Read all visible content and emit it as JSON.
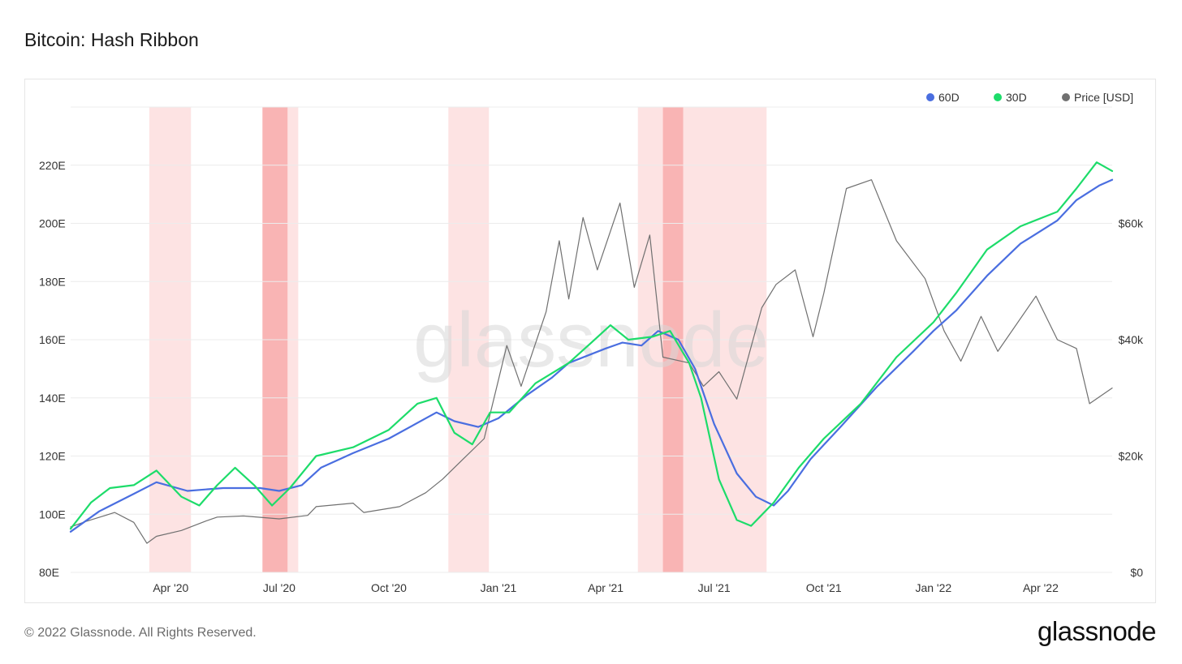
{
  "title": "Bitcoin: Hash Ribbon",
  "footer": "© 2022 Glassnode. All Rights Reserved.",
  "brand": "glassnode",
  "watermark": "glassnode",
  "colors": {
    "hash60": "#4a6ee0",
    "hash30": "#1ddc6a",
    "price": "#707070",
    "band_light": "#fde3e3",
    "band_dark": "#f9b4b4",
    "grid": "#ececec"
  },
  "chart_data": {
    "type": "line",
    "title": "Bitcoin: Hash Ribbon",
    "legend_position": "top-right",
    "grid": true,
    "x_tick_labels": [
      "Apr '20",
      "Jul '20",
      "Oct '20",
      "Jan '21",
      "Apr '21",
      "Jul '21",
      "Oct '21",
      "Jan '22",
      "Apr '22"
    ],
    "x_ticks": [
      "2020-04-01",
      "2020-07-01",
      "2020-10-01",
      "2021-01-01",
      "2021-04-01",
      "2021-07-01",
      "2021-10-01",
      "2022-01-01",
      "2022-04-01"
    ],
    "xlim": [
      "2020-01-08",
      "2022-05-31"
    ],
    "y_left": {
      "tick_labels": [
        "80E",
        "100E",
        "120E",
        "140E",
        "160E",
        "180E",
        "200E",
        "220E"
      ],
      "ticks": [
        80,
        100,
        120,
        140,
        160,
        180,
        200,
        220
      ],
      "ylim": [
        80,
        240
      ]
    },
    "y_right": {
      "tick_labels": [
        "$0",
        "$20k",
        "$40k",
        "$60k"
      ],
      "ticks": [
        0,
        20000,
        40000,
        60000
      ],
      "ylim": [
        0,
        80000
      ]
    },
    "capitulation_bands": [
      {
        "start": "2020-03-14",
        "end": "2020-04-18",
        "level": "light"
      },
      {
        "start": "2020-06-17",
        "end": "2020-07-17",
        "level": "light"
      },
      {
        "start": "2020-06-17",
        "end": "2020-07-08",
        "level": "dark"
      },
      {
        "start": "2020-11-20",
        "end": "2020-12-24",
        "level": "light"
      },
      {
        "start": "2021-04-28",
        "end": "2021-08-14",
        "level": "light"
      },
      {
        "start": "2021-05-19",
        "end": "2021-06-05",
        "level": "dark"
      }
    ],
    "series": [
      {
        "name": "60D",
        "axis": "left",
        "points": [
          [
            "2020-01-08",
            94
          ],
          [
            "2020-02-01",
            101
          ],
          [
            "2020-03-01",
            107
          ],
          [
            "2020-03-20",
            111
          ],
          [
            "2020-04-15",
            108
          ],
          [
            "2020-05-15",
            109
          ],
          [
            "2020-06-15",
            109
          ],
          [
            "2020-07-01",
            108
          ],
          [
            "2020-07-20",
            110
          ],
          [
            "2020-08-05",
            116
          ],
          [
            "2020-09-01",
            121
          ],
          [
            "2020-10-01",
            126
          ],
          [
            "2020-11-10",
            135
          ],
          [
            "2020-11-25",
            132
          ],
          [
            "2020-12-15",
            130
          ],
          [
            "2021-01-01",
            133
          ],
          [
            "2021-01-25",
            141
          ],
          [
            "2021-02-15",
            147
          ],
          [
            "2021-03-01",
            152
          ],
          [
            "2021-04-01",
            157
          ],
          [
            "2021-04-15",
            159
          ],
          [
            "2021-05-01",
            158
          ],
          [
            "2021-05-15",
            163
          ],
          [
            "2021-06-01",
            160
          ],
          [
            "2021-06-15",
            150
          ],
          [
            "2021-07-01",
            131
          ],
          [
            "2021-07-20",
            114
          ],
          [
            "2021-08-05",
            106
          ],
          [
            "2021-08-20",
            103
          ],
          [
            "2021-09-01",
            108
          ],
          [
            "2021-09-20",
            119
          ],
          [
            "2021-10-15",
            130
          ],
          [
            "2021-11-15",
            144
          ],
          [
            "2021-12-15",
            156
          ],
          [
            "2022-01-01",
            163
          ],
          [
            "2022-01-20",
            170
          ],
          [
            "2022-02-15",
            182
          ],
          [
            "2022-03-15",
            193
          ],
          [
            "2022-04-15",
            201
          ],
          [
            "2022-05-01",
            208
          ],
          [
            "2022-05-20",
            213
          ],
          [
            "2022-05-31",
            215
          ]
        ]
      },
      {
        "name": "30D",
        "axis": "left",
        "points": [
          [
            "2020-01-08",
            95
          ],
          [
            "2020-01-25",
            104
          ],
          [
            "2020-02-10",
            109
          ],
          [
            "2020-03-01",
            110
          ],
          [
            "2020-03-20",
            115
          ],
          [
            "2020-04-10",
            106
          ],
          [
            "2020-04-25",
            103
          ],
          [
            "2020-05-10",
            110
          ],
          [
            "2020-05-25",
            116
          ],
          [
            "2020-06-10",
            110
          ],
          [
            "2020-06-25",
            103
          ],
          [
            "2020-07-10",
            109
          ],
          [
            "2020-08-01",
            120
          ],
          [
            "2020-09-01",
            123
          ],
          [
            "2020-10-01",
            129
          ],
          [
            "2020-10-25",
            138
          ],
          [
            "2020-11-10",
            140
          ],
          [
            "2020-11-25",
            128
          ],
          [
            "2020-12-10",
            124
          ],
          [
            "2020-12-25",
            135
          ],
          [
            "2021-01-10",
            135
          ],
          [
            "2021-02-01",
            145
          ],
          [
            "2021-03-01",
            152
          ],
          [
            "2021-03-20",
            159
          ],
          [
            "2021-04-05",
            165
          ],
          [
            "2021-04-20",
            160
          ],
          [
            "2021-05-10",
            161
          ],
          [
            "2021-05-25",
            163
          ],
          [
            "2021-06-10",
            152
          ],
          [
            "2021-06-20",
            140
          ],
          [
            "2021-07-05",
            112
          ],
          [
            "2021-07-20",
            98
          ],
          [
            "2021-08-01",
            96
          ],
          [
            "2021-08-20",
            104
          ],
          [
            "2021-09-10",
            116
          ],
          [
            "2021-10-01",
            126
          ],
          [
            "2021-11-01",
            138
          ],
          [
            "2021-12-01",
            154
          ],
          [
            "2022-01-01",
            166
          ],
          [
            "2022-01-20",
            176
          ],
          [
            "2022-02-15",
            191
          ],
          [
            "2022-03-15",
            199
          ],
          [
            "2022-04-15",
            204
          ],
          [
            "2022-05-01",
            212
          ],
          [
            "2022-05-18",
            221
          ],
          [
            "2022-05-31",
            218
          ]
        ]
      },
      {
        "name": "Price [USD]",
        "axis": "right",
        "points": [
          [
            "2020-01-08",
            7800
          ],
          [
            "2020-01-20",
            8700
          ],
          [
            "2020-02-14",
            10300
          ],
          [
            "2020-03-01",
            8600
          ],
          [
            "2020-03-12",
            5000
          ],
          [
            "2020-03-20",
            6200
          ],
          [
            "2020-04-10",
            7200
          ],
          [
            "2020-04-30",
            8800
          ],
          [
            "2020-05-10",
            9500
          ],
          [
            "2020-06-01",
            9700
          ],
          [
            "2020-07-01",
            9200
          ],
          [
            "2020-07-25",
            9800
          ],
          [
            "2020-08-01",
            11300
          ],
          [
            "2020-09-01",
            11900
          ],
          [
            "2020-09-10",
            10300
          ],
          [
            "2020-10-10",
            11300
          ],
          [
            "2020-11-01",
            13700
          ],
          [
            "2020-11-15",
            16000
          ],
          [
            "2020-12-01",
            19200
          ],
          [
            "2020-12-20",
            23000
          ],
          [
            "2021-01-08",
            39000
          ],
          [
            "2021-01-20",
            32000
          ],
          [
            "2021-02-10",
            44800
          ],
          [
            "2021-02-21",
            57000
          ],
          [
            "2021-03-01",
            47000
          ],
          [
            "2021-03-13",
            61000
          ],
          [
            "2021-03-25",
            52000
          ],
          [
            "2021-04-13",
            63500
          ],
          [
            "2021-04-25",
            49000
          ],
          [
            "2021-05-08",
            58000
          ],
          [
            "2021-05-19",
            37000
          ],
          [
            "2021-06-10",
            36000
          ],
          [
            "2021-06-22",
            32000
          ],
          [
            "2021-07-05",
            34500
          ],
          [
            "2021-07-20",
            29800
          ],
          [
            "2021-08-10",
            45500
          ],
          [
            "2021-08-22",
            49500
          ],
          [
            "2021-09-07",
            52000
          ],
          [
            "2021-09-22",
            40500
          ],
          [
            "2021-10-01",
            48000
          ],
          [
            "2021-10-20",
            66000
          ],
          [
            "2021-11-10",
            67500
          ],
          [
            "2021-12-01",
            57000
          ],
          [
            "2021-12-25",
            50500
          ],
          [
            "2022-01-10",
            41500
          ],
          [
            "2022-01-24",
            36300
          ],
          [
            "2022-02-10",
            44000
          ],
          [
            "2022-02-24",
            38000
          ],
          [
            "2022-03-28",
            47500
          ],
          [
            "2022-04-15",
            40000
          ],
          [
            "2022-05-01",
            38500
          ],
          [
            "2022-05-12",
            29000
          ],
          [
            "2022-05-31",
            31700
          ]
        ]
      }
    ]
  }
}
